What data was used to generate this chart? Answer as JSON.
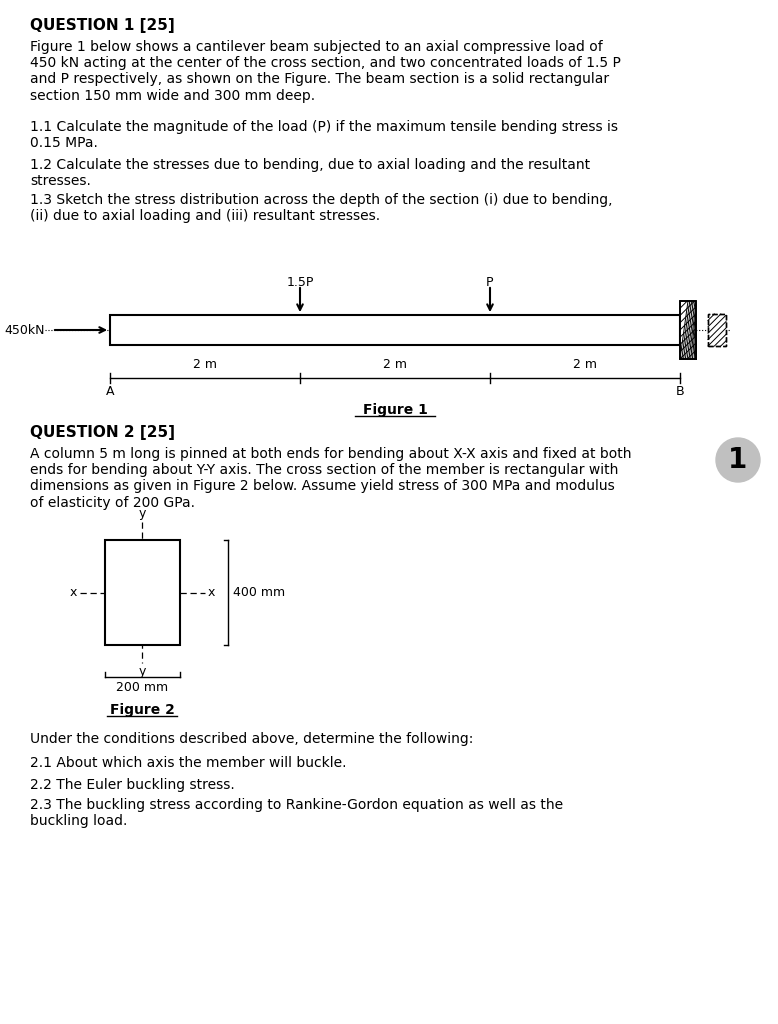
{
  "title": "QUESTION 1 [25]",
  "q1_body": "Figure 1 below shows a cantilever beam subjected to an axial compressive load of\n450 kN acting at the center of the cross section, and two concentrated loads of 1.5 P\nand P respectively, as shown on the Figure. The beam section is a solid rectangular\nsection 150 mm wide and 300 mm deep.",
  "q1_1": "1.1 Calculate the magnitude of the load (P) if the maximum tensile bending stress is\n0.15 MPa.",
  "q1_2": "1.2 Calculate the stresses due to bending, due to axial loading and the resultant\nstresses.",
  "q1_3": "1.3 Sketch the stress distribution across the depth of the section (i) due to bending,\n(ii) due to axial loading and (iii) resultant stresses.",
  "figure1_label": "Figure 1",
  "q2_title": "QUESTION 2 [25]",
  "q2_body": "A column 5 m long is pinned at both ends for bending about X-X axis and fixed at both\nends for bending about Y-Y axis. The cross section of the member is rectangular with\ndimensions as given in Figure 2 below. Assume yield stress of 300 MPa and modulus\nof elasticity of 200 GPa.",
  "figure2_label": "Figure 2",
  "q2_under": "Under the conditions described above, determine the following:",
  "q2_1": "2.1 About which axis the member will buckle.",
  "q2_2": "2.2 The Euler buckling stress.",
  "q2_3": "2.3 The buckling stress according to Rankine-Gordon equation as well as the\nbuckling load.",
  "bg_color": "#ffffff",
  "text_color": "#000000",
  "page_number": "1",
  "page_number_bg": "#c0c0c0"
}
